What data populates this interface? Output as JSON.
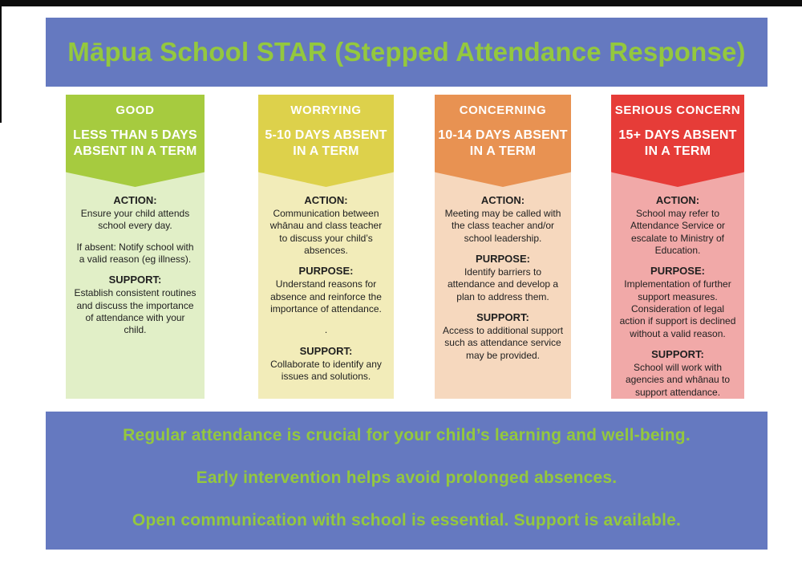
{
  "header": {
    "title": "Māpua School STAR (Stepped Attendance Response)"
  },
  "columns": [
    {
      "id": "good",
      "level": "GOOD",
      "range": "LESS THAN 5 DAYS\nABSENT IN A TERM",
      "header_color": "#a6cb3f",
      "body_color": "#e1efc7",
      "sections": [
        {
          "label": "ACTION:",
          "text": "Ensure your child attends school every day."
        },
        {
          "label": "",
          "text": "If absent: Notify school with a valid reason (eg illness)."
        },
        {
          "label": "SUPPORT:",
          "text": "Establish consistent routines and discuss the importance of attendance with your child."
        }
      ]
    },
    {
      "id": "worrying",
      "level": "WORRYING",
      "range": "5-10 DAYS ABSENT\nIN A TERM",
      "header_color": "#ddd14b",
      "body_color": "#f2ecb9",
      "sections": [
        {
          "label": "ACTION:",
          "text": "Communication between whānau and class teacher to discuss your child’s absences."
        },
        {
          "label": "PURPOSE:",
          "text": "Understand reasons for absence and reinforce the importance of attendance."
        },
        {
          "label": "",
          "text": "."
        },
        {
          "label": "SUPPORT:",
          "text": "Collaborate to identify any issues and solutions."
        }
      ]
    },
    {
      "id": "concerning",
      "level": "CONCERNING",
      "range": "10-14 DAYS ABSENT\nIN A TERM",
      "header_color": "#e89252",
      "body_color": "#f6d8be",
      "sections": [
        {
          "label": "ACTION:",
          "text": "Meeting may be called with the class teacher and/or school leadership."
        },
        {
          "label": "PURPOSE:",
          "text": "Identify barriers to attendance and develop a plan to address them."
        },
        {
          "label": "SUPPORT:",
          "text": "Access to additional support such as attendance service may be provided."
        }
      ]
    },
    {
      "id": "serious-concern",
      "level": "SERIOUS CONCERN",
      "range": "15+ DAYS ABSENT\nIN A TERM",
      "header_color": "#e63c38",
      "body_color": "#f1a9a8",
      "sections": [
        {
          "label": "ACTION:",
          "text": "School may refer to Attendance Service or escalate to Ministry of Education."
        },
        {
          "label": "PURPOSE:",
          "text": "Implementation of further support measures. Consideration of legal action if support is declined without a valid reason."
        },
        {
          "label": "SUPPORT:",
          "text": "School will work with agencies and whānau to support attendance."
        }
      ]
    }
  ],
  "footer": {
    "lines": [
      "Regular attendance is crucial for your child’s learning and well-being.",
      "Early intervention helps avoid prolonged absences.",
      "Open communication with school is essential. Support is available."
    ]
  },
  "colors": {
    "banner_background": "#6579c0",
    "accent_green": "#94c83e",
    "page_background": "#ffffff",
    "top_bar": "#0d0d0d",
    "header_text": "#ffffff",
    "body_text": "#1f1f1f"
  }
}
